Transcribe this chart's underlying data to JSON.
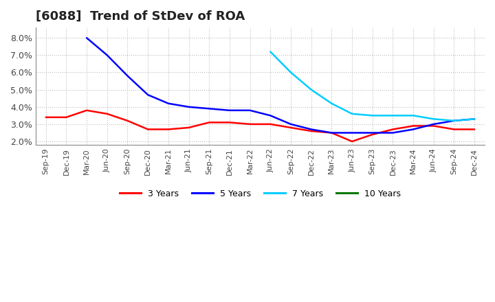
{
  "title": "[6088]  Trend of StDev of ROA",
  "title_fontsize": 13,
  "ylim": [
    0.018,
    0.086
  ],
  "yticks": [
    0.02,
    0.03,
    0.04,
    0.05,
    0.06,
    0.07,
    0.08
  ],
  "background_color": "#ffffff",
  "grid_color": "#bbbbbb",
  "x_labels": [
    "Sep-19",
    "Dec-19",
    "Mar-20",
    "Jun-20",
    "Sep-20",
    "Dec-20",
    "Mar-21",
    "Jun-21",
    "Sep-21",
    "Dec-21",
    "Mar-22",
    "Jun-22",
    "Sep-22",
    "Dec-22",
    "Mar-23",
    "Jun-23",
    "Sep-23",
    "Dec-23",
    "Mar-24",
    "Jun-24",
    "Sep-24",
    "Dec-24"
  ],
  "series": [
    {
      "key": "3yr",
      "color": "#ff0000",
      "label": "3 Years",
      "data_x": [
        0,
        1,
        2,
        3,
        4,
        5,
        6,
        7,
        8,
        9,
        10,
        11,
        12,
        13,
        14,
        15,
        16,
        17,
        18,
        19,
        20,
        21
      ],
      "data_y": [
        0.034,
        0.034,
        0.038,
        0.036,
        0.032,
        0.027,
        0.027,
        0.028,
        0.031,
        0.031,
        0.03,
        0.03,
        0.028,
        0.026,
        0.025,
        0.02,
        0.024,
        0.027,
        0.029,
        0.029,
        0.027,
        0.027
      ]
    },
    {
      "key": "5yr",
      "color": "#0000ff",
      "label": "5 Years",
      "data_x": [
        2,
        3,
        4,
        5,
        6,
        7,
        8,
        9,
        10,
        11,
        12,
        13,
        14,
        15,
        16,
        17,
        18,
        19,
        20,
        21
      ],
      "data_y": [
        0.08,
        0.07,
        0.058,
        0.047,
        0.042,
        0.04,
        0.039,
        0.038,
        0.038,
        0.035,
        0.03,
        0.027,
        0.025,
        0.025,
        0.025,
        0.025,
        0.027,
        0.03,
        0.032,
        0.033
      ]
    },
    {
      "key": "7yr",
      "color": "#00ccff",
      "label": "7 Years",
      "data_x": [
        11,
        12,
        13,
        14,
        15,
        16,
        17,
        18,
        19,
        20,
        21
      ],
      "data_y": [
        0.072,
        0.06,
        0.05,
        0.042,
        0.036,
        0.035,
        0.035,
        0.035,
        0.033,
        0.032,
        0.033
      ]
    },
    {
      "key": "10yr",
      "color": "#007700",
      "label": "10 Years",
      "data_x": [],
      "data_y": []
    }
  ],
  "legend_colors": [
    "#ff0000",
    "#0000ff",
    "#00ccff",
    "#007700"
  ],
  "legend_labels": [
    "3 Years",
    "5 Years",
    "7 Years",
    "10 Years"
  ]
}
